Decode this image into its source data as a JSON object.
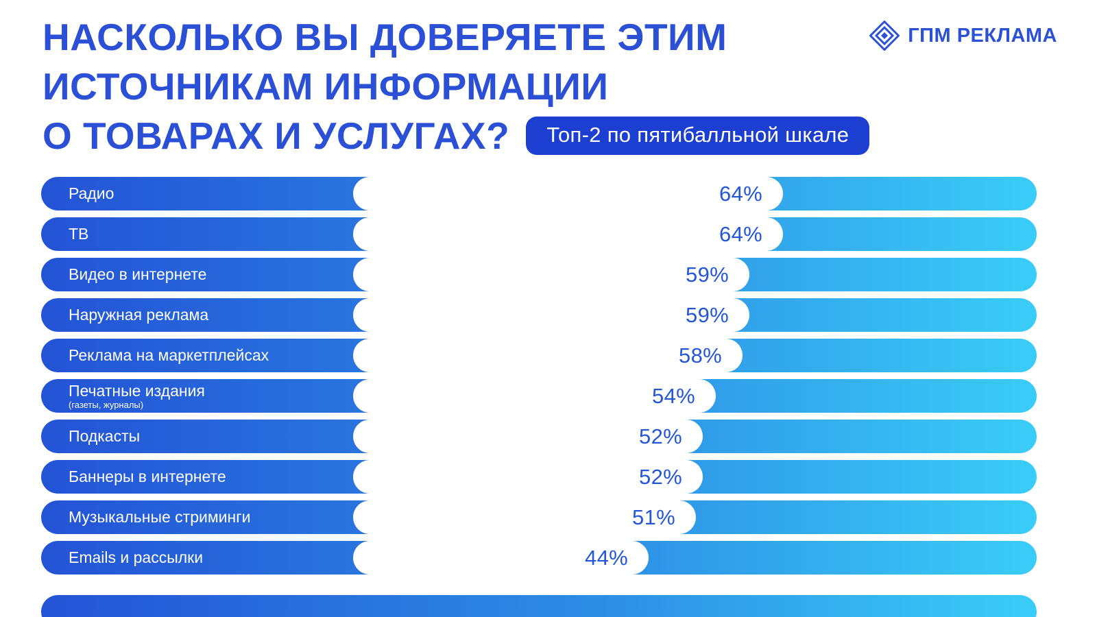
{
  "page": {
    "title_lines": [
      "НАСКОЛЬКО ВЫ ДОВЕРЯЕТЕ ЭТИМ",
      "ИСТОЧНИКАМ ИНФОРМАЦИИ",
      "О ТОВАРАХ И УСЛУГАХ?"
    ],
    "badge": "Топ-2 по пятибалльной шкале",
    "logo_text": "ГПМ РЕКЛАМА"
  },
  "colors": {
    "title": "#2b50d6",
    "badge_bg": "#1c3ed1",
    "bar_gradient_start": "#2353d6",
    "bar_gradient_end": "#3acdf8",
    "value_text": "#2456d8",
    "bar_label_text": "#ffffff"
  },
  "chart_data": {
    "type": "bar",
    "orientation": "horizontal",
    "title": "НАСКОЛЬКО ВЫ ДОВЕРЯЕТЕ ЭТИМ ИСТОЧНИКАМ ИНФОРМАЦИИ О ТОВАРАХ И УСЛУГАХ?",
    "subtitle": "Топ-2 по пятибалльной шкале",
    "unit": "%",
    "xlim": [
      0,
      100
    ],
    "grid": false,
    "legend": false,
    "categories": [
      "Радио",
      "ТВ",
      "Видео в интернете",
      "Наружная реклама",
      "Реклама на маркетплейсах",
      "Печатные издания",
      "Подкасты",
      "Баннеры в интернете",
      "Музыкальные стриминги",
      "Emails и рассылки"
    ],
    "sublabels": [
      "",
      "",
      "",
      "",
      "",
      "(газеты, журналы)",
      "",
      "",
      "",
      ""
    ],
    "values": [
      64,
      64,
      59,
      59,
      58,
      54,
      52,
      52,
      51,
      44
    ],
    "value_labels": [
      "64%",
      "64%",
      "59%",
      "59%",
      "58%",
      "54%",
      "52%",
      "52%",
      "51%",
      "44%"
    ]
  }
}
